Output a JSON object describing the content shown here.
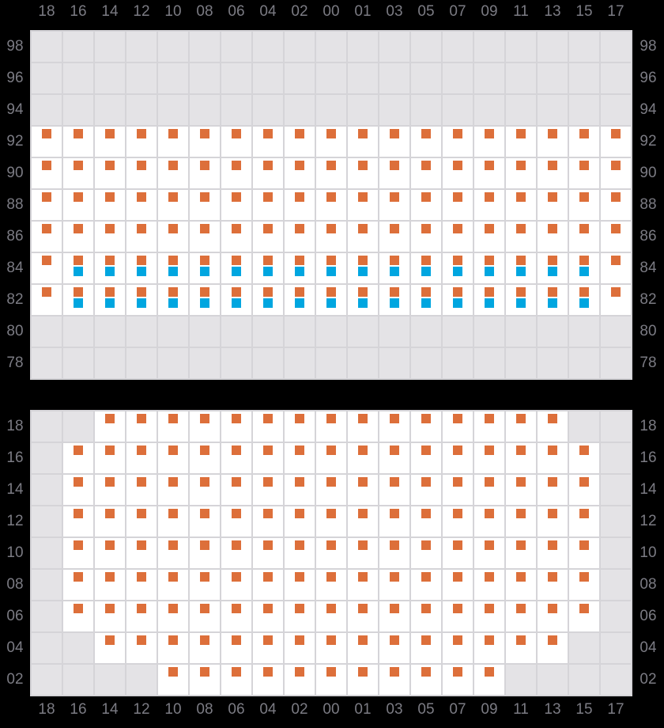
{
  "columns": [
    "18",
    "16",
    "14",
    "12",
    "10",
    "08",
    "06",
    "04",
    "02",
    "00",
    "01",
    "03",
    "05",
    "07",
    "09",
    "11",
    "13",
    "15",
    "17"
  ],
  "colors": {
    "background": "#000000",
    "grid_line": "#d5d4d8",
    "cell_empty": "#e4e3e6",
    "cell_available": "#ffffff",
    "marker_orange": "#dd6f3a",
    "marker_blue": "#00a6e0",
    "label_text": "#7b7b83"
  },
  "cell_codes": {
    "g": "empty-gray",
    "o": "available-orange-marker",
    "b": "available-orange-and-blue-markers"
  },
  "panels": [
    {
      "name": "upper-block",
      "rows": [
        {
          "label": "98",
          "cells": "ggggggggggggggggggg"
        },
        {
          "label": "96",
          "cells": "ggggggggggggggggggg"
        },
        {
          "label": "94",
          "cells": "ggggggggggggggggggg"
        },
        {
          "label": "92",
          "cells": "ooooooooooooooooooo"
        },
        {
          "label": "90",
          "cells": "ooooooooooooooooooo"
        },
        {
          "label": "88",
          "cells": "ooooooooooooooooooo"
        },
        {
          "label": "86",
          "cells": "ooooooooooooooooooo"
        },
        {
          "label": "84",
          "cells": "obbbbbbbbbbbbbbbbbo"
        },
        {
          "label": "82",
          "cells": "obbbbbbbbbbbbbbbbbo"
        },
        {
          "label": "80",
          "cells": "ggggggggggggggggggg"
        },
        {
          "label": "78",
          "cells": "ggggggggggggggggggg"
        }
      ]
    },
    {
      "name": "lower-block",
      "rows": [
        {
          "label": "18",
          "cells": "ggooooooooooooooogg"
        },
        {
          "label": "16",
          "cells": "gooooooooooooooooog"
        },
        {
          "label": "14",
          "cells": "gooooooooooooooooog"
        },
        {
          "label": "12",
          "cells": "gooooooooooooooooog"
        },
        {
          "label": "10",
          "cells": "gooooooooooooooooog"
        },
        {
          "label": "08",
          "cells": "gooooooooooooooooog"
        },
        {
          "label": "06",
          "cells": "gooooooooooooooooog"
        },
        {
          "label": "04",
          "cells": "ggooooooooooooooogg"
        },
        {
          "label": "02",
          "cells": "ggggooooooooooogggg"
        }
      ]
    }
  ]
}
